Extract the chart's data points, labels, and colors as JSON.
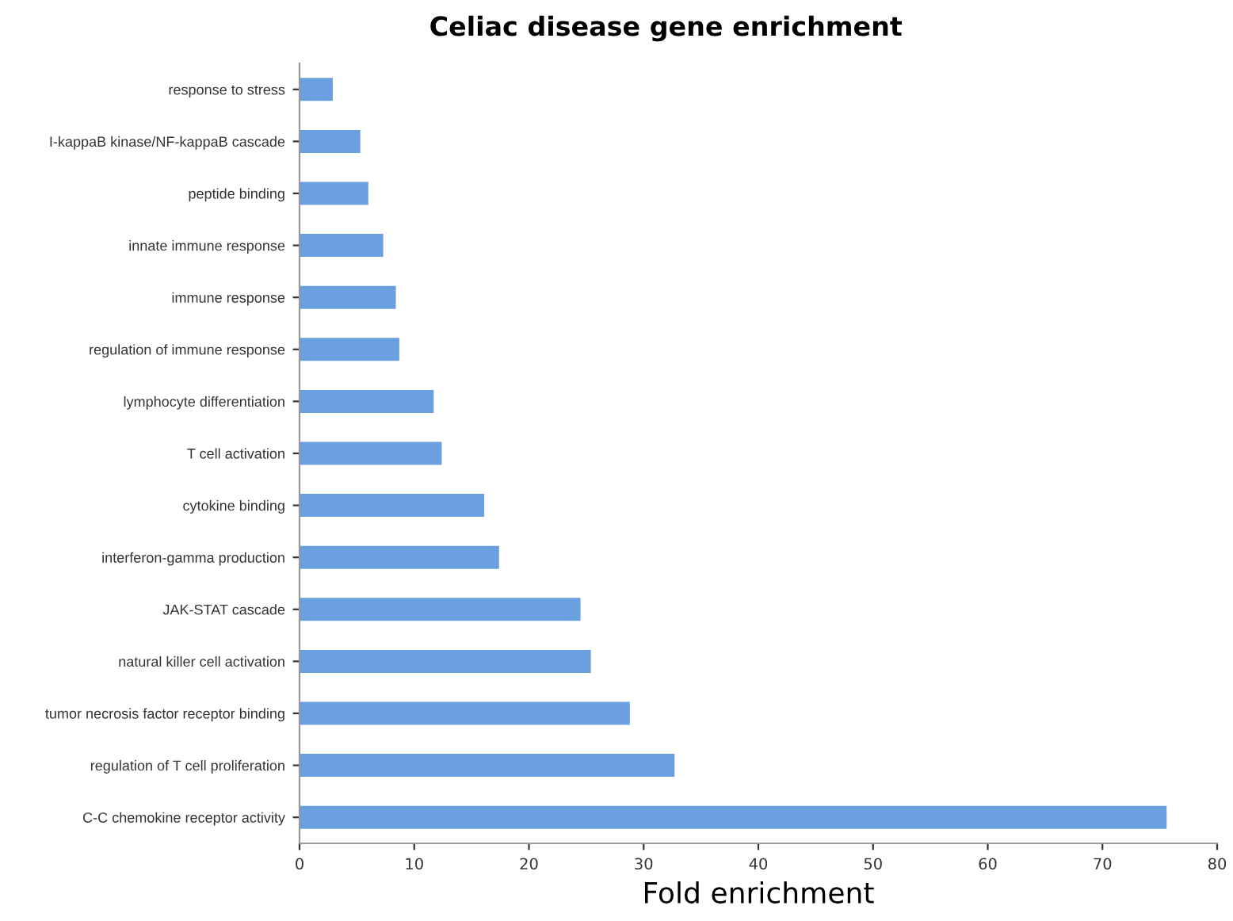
{
  "chart_data": {
    "type": "bar",
    "orientation": "horizontal",
    "title": "Celiac disease gene enrichment",
    "xlabel": "Fold enrichment",
    "categories": [
      "response to stress",
      "I-kappaB kinase/NF-kappaB cascade",
      "peptide binding",
      "innate immune response",
      "immune response",
      "regulation of immune response",
      "lymphocyte differentiation",
      "T cell activation",
      "cytokine binding",
      "interferon-gamma production",
      "JAK-STAT cascade",
      "natural killer cell activation",
      "tumor necrosis factor receptor binding",
      "regulation of T cell proliferation",
      "C-C chemokine receptor activity"
    ],
    "values": [
      2.8,
      5.2,
      5.9,
      7.2,
      8.3,
      8.6,
      11.6,
      12.3,
      16.0,
      17.3,
      24.4,
      25.3,
      28.7,
      32.6,
      75.5
    ],
    "color": "#6a9fe0",
    "xlim": [
      0,
      80
    ],
    "xticks": [
      0,
      10,
      20,
      30,
      40,
      50,
      60,
      70,
      80
    ],
    "grid": false
  }
}
